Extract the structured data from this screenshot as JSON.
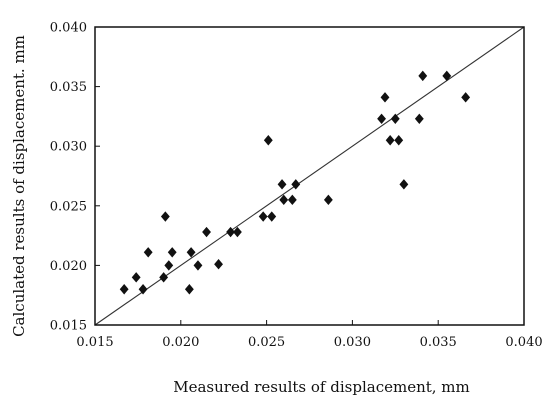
{
  "chart_data": {
    "type": "scatter",
    "title": "",
    "xlabel": "Measured results of displacement, mm",
    "ylabel": "Calculated results of displacement. mm",
    "xlim": [
      0.015,
      0.04
    ],
    "ylim": [
      0.015,
      0.04
    ],
    "x_ticks": [
      "0.015",
      "0.020",
      "0.025",
      "0.030",
      "0.035",
      "0.040"
    ],
    "y_ticks": [
      "0.015",
      "0.020",
      "0.025",
      "0.030",
      "0.035",
      "0.040"
    ],
    "grid": false,
    "legend": "none",
    "marker": "diamond",
    "marker_color": "#111111",
    "reference_line": {
      "x": [
        0.015,
        0.04
      ],
      "y": [
        0.015,
        0.04
      ]
    },
    "points": [
      [
        0.0167,
        0.018
      ],
      [
        0.0174,
        0.019
      ],
      [
        0.0178,
        0.018
      ],
      [
        0.0181,
        0.0211
      ],
      [
        0.019,
        0.019
      ],
      [
        0.0191,
        0.0241
      ],
      [
        0.0193,
        0.02
      ],
      [
        0.0195,
        0.0211
      ],
      [
        0.0205,
        0.018
      ],
      [
        0.0206,
        0.0211
      ],
      [
        0.021,
        0.02
      ],
      [
        0.0215,
        0.0228
      ],
      [
        0.0222,
        0.0201
      ],
      [
        0.0229,
        0.0228
      ],
      [
        0.0233,
        0.0228
      ],
      [
        0.0248,
        0.0241
      ],
      [
        0.0251,
        0.0305
      ],
      [
        0.0253,
        0.0241
      ],
      [
        0.0259,
        0.0268
      ],
      [
        0.026,
        0.0255
      ],
      [
        0.0265,
        0.0255
      ],
      [
        0.0267,
        0.0268
      ],
      [
        0.0286,
        0.0255
      ],
      [
        0.0317,
        0.0323
      ],
      [
        0.0319,
        0.0341
      ],
      [
        0.0322,
        0.0305
      ],
      [
        0.0325,
        0.0323
      ],
      [
        0.0327,
        0.0305
      ],
      [
        0.033,
        0.0268
      ],
      [
        0.0339,
        0.0323
      ],
      [
        0.0341,
        0.0359
      ],
      [
        0.0355,
        0.0359
      ],
      [
        0.0366,
        0.0341
      ]
    ]
  }
}
